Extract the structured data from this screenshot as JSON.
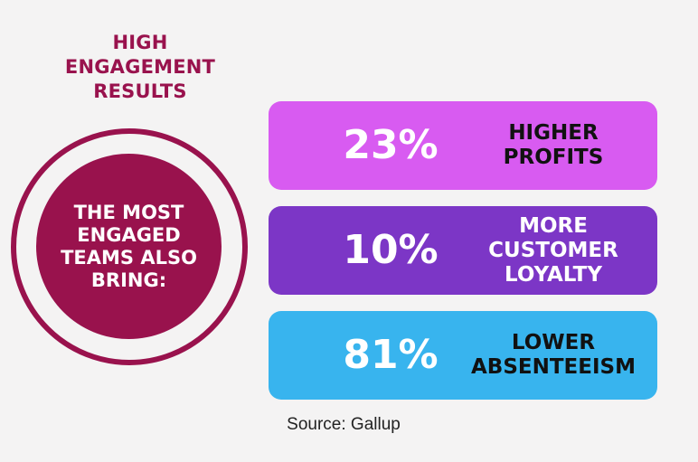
{
  "title": {
    "line1": "HIGH",
    "line2": "ENGAGEMENT",
    "line3": "RESULTS"
  },
  "circle": {
    "line1": "THE MOST",
    "line2": "ENGAGED",
    "line3": "TEAMS ALSO",
    "line4": "BRING:"
  },
  "stats": [
    {
      "value": "23%",
      "label_lines": [
        "HIGHER",
        "PROFITS"
      ],
      "color": "#d85bf1"
    },
    {
      "value": "10%",
      "label_lines": [
        "MORE",
        "CUSTOMER",
        "LOYALTY"
      ],
      "color": "#7c36c6"
    },
    {
      "value": "81%",
      "label_lines": [
        "LOWER",
        "ABSENTEEISM"
      ],
      "color": "#38b4ee"
    }
  ],
  "source": "Source: Gallup",
  "colors": {
    "accent": "#99124d",
    "background": "#f4f3f3"
  }
}
